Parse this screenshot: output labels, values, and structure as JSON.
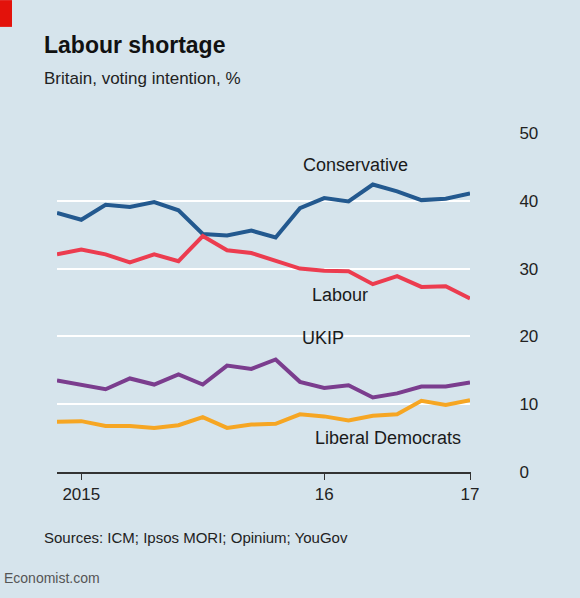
{
  "chart_data": {
    "type": "line",
    "title": "Labour shortage",
    "subtitle": "Britain, voting intention, %",
    "source": "Sources: ICM; Ipsos MORI; Opinium; YouGov",
    "credit": "Economist.com",
    "categories": [
      null,
      "2015",
      null,
      null,
      null,
      null,
      null,
      null,
      null,
      null,
      null,
      "16",
      null,
      null,
      null,
      null,
      null,
      "17"
    ],
    "series": [
      {
        "name": "Conservative",
        "color": "#23598f",
        "values": [
          38.2,
          37.2,
          39.4,
          39.1,
          39.8,
          38.6,
          35.1,
          34.9,
          35.6,
          34.6,
          38.9,
          40.4,
          39.9,
          42.4,
          41.4,
          40.1,
          40.3,
          41.1
        ]
      },
      {
        "name": "Labour",
        "color": "#ec3c4f",
        "values": [
          32.1,
          32.8,
          32.1,
          30.9,
          32.1,
          31.1,
          34.8,
          32.7,
          32.3,
          31.2,
          30.0,
          29.7,
          29.6,
          27.7,
          28.9,
          27.3,
          27.4,
          25.6
        ]
      },
      {
        "name": "UKIP",
        "color": "#7b3d8e",
        "values": [
          13.5,
          12.8,
          12.2,
          13.8,
          12.9,
          14.4,
          12.9,
          15.7,
          15.2,
          16.6,
          13.3,
          12.4,
          12.8,
          11.0,
          11.6,
          12.6,
          12.6,
          13.2
        ]
      },
      {
        "name": "Liberal Democrats",
        "color": "#f6a623",
        "values": [
          7.4,
          7.5,
          6.8,
          6.8,
          6.5,
          6.9,
          8.1,
          6.5,
          7.0,
          7.1,
          8.5,
          8.2,
          7.6,
          8.3,
          8.5,
          10.5,
          9.9,
          10.6
        ]
      }
    ],
    "ylim": [
      0,
      50
    ],
    "yticks": [
      0,
      10,
      20,
      30,
      40,
      50
    ],
    "grid": true
  }
}
